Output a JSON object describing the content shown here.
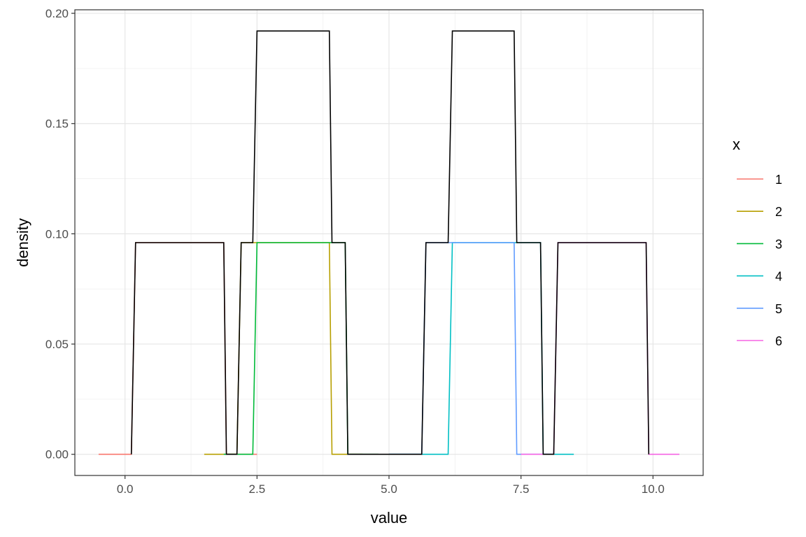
{
  "chart_data": {
    "type": "line",
    "xlabel": "value",
    "ylabel": "density",
    "xlim": [
      -0.95,
      10.95
    ],
    "ylim": [
      -0.0096,
      0.2016
    ],
    "x_ticks": [
      0,
      2.5,
      5,
      7.5,
      10
    ],
    "x_tick_labels": [
      "0.0",
      "2.5",
      "5.0",
      "7.5",
      "10.0"
    ],
    "y_ticks": [
      0,
      0.05,
      0.1,
      0.15,
      0.2
    ],
    "y_tick_labels": [
      "0.00",
      "0.05",
      "0.10",
      "0.15",
      "0.20"
    ],
    "grid": true,
    "legend": {
      "title": "x",
      "placement": "right"
    },
    "series": [
      {
        "name": "1",
        "color": "#F8766D",
        "x": [
          -0.5,
          0.12,
          0.2,
          1.87,
          1.92,
          2.5
        ],
        "y": [
          0,
          0,
          0.096,
          0.096,
          0,
          0
        ]
      },
      {
        "name": "2",
        "color": "#B79F00",
        "x": [
          1.5,
          2.12,
          2.2,
          3.87,
          3.92,
          4.5
        ],
        "y": [
          0,
          0,
          0.096,
          0.096,
          0,
          0
        ]
      },
      {
        "name": "3",
        "color": "#00BA38",
        "x": [
          1.87,
          2.42,
          2.5,
          4.17,
          4.22,
          4.8
        ],
        "y": [
          0,
          0,
          0.096,
          0.096,
          0,
          0
        ]
      },
      {
        "name": "4",
        "color": "#00BFC4",
        "x": [
          5.0,
          6.12,
          6.2,
          7.87,
          7.92,
          8.5
        ],
        "y": [
          0,
          0,
          0.096,
          0.096,
          0,
          0
        ]
      },
      {
        "name": "5",
        "color": "#619CFF",
        "x": [
          5.0,
          5.62,
          5.7,
          7.37,
          7.42,
          8.0
        ],
        "y": [
          0,
          0,
          0.096,
          0.096,
          0,
          0
        ]
      },
      {
        "name": "6",
        "color": "#F564E3",
        "x": [
          7.5,
          8.12,
          8.2,
          9.87,
          9.92,
          10.5
        ],
        "y": [
          0,
          0,
          0.096,
          0.096,
          0,
          0
        ]
      },
      {
        "name": "",
        "color": "#000000",
        "x": [
          0.12,
          0.2,
          1.87,
          1.92,
          2.12,
          2.2,
          2.42,
          2.5,
          3.87,
          3.92,
          4.17,
          4.22,
          5.62,
          5.7,
          6.12,
          6.2,
          7.37,
          7.42,
          7.87,
          7.92,
          8.12,
          8.2,
          9.87,
          9.92
        ],
        "y": [
          0,
          0.096,
          0.096,
          0,
          0,
          0.096,
          0.096,
          0.192,
          0.192,
          0.096,
          0.096,
          0,
          0,
          0.096,
          0.096,
          0.192,
          0.192,
          0.096,
          0.096,
          0,
          0,
          0.096,
          0.096,
          0
        ]
      }
    ]
  }
}
